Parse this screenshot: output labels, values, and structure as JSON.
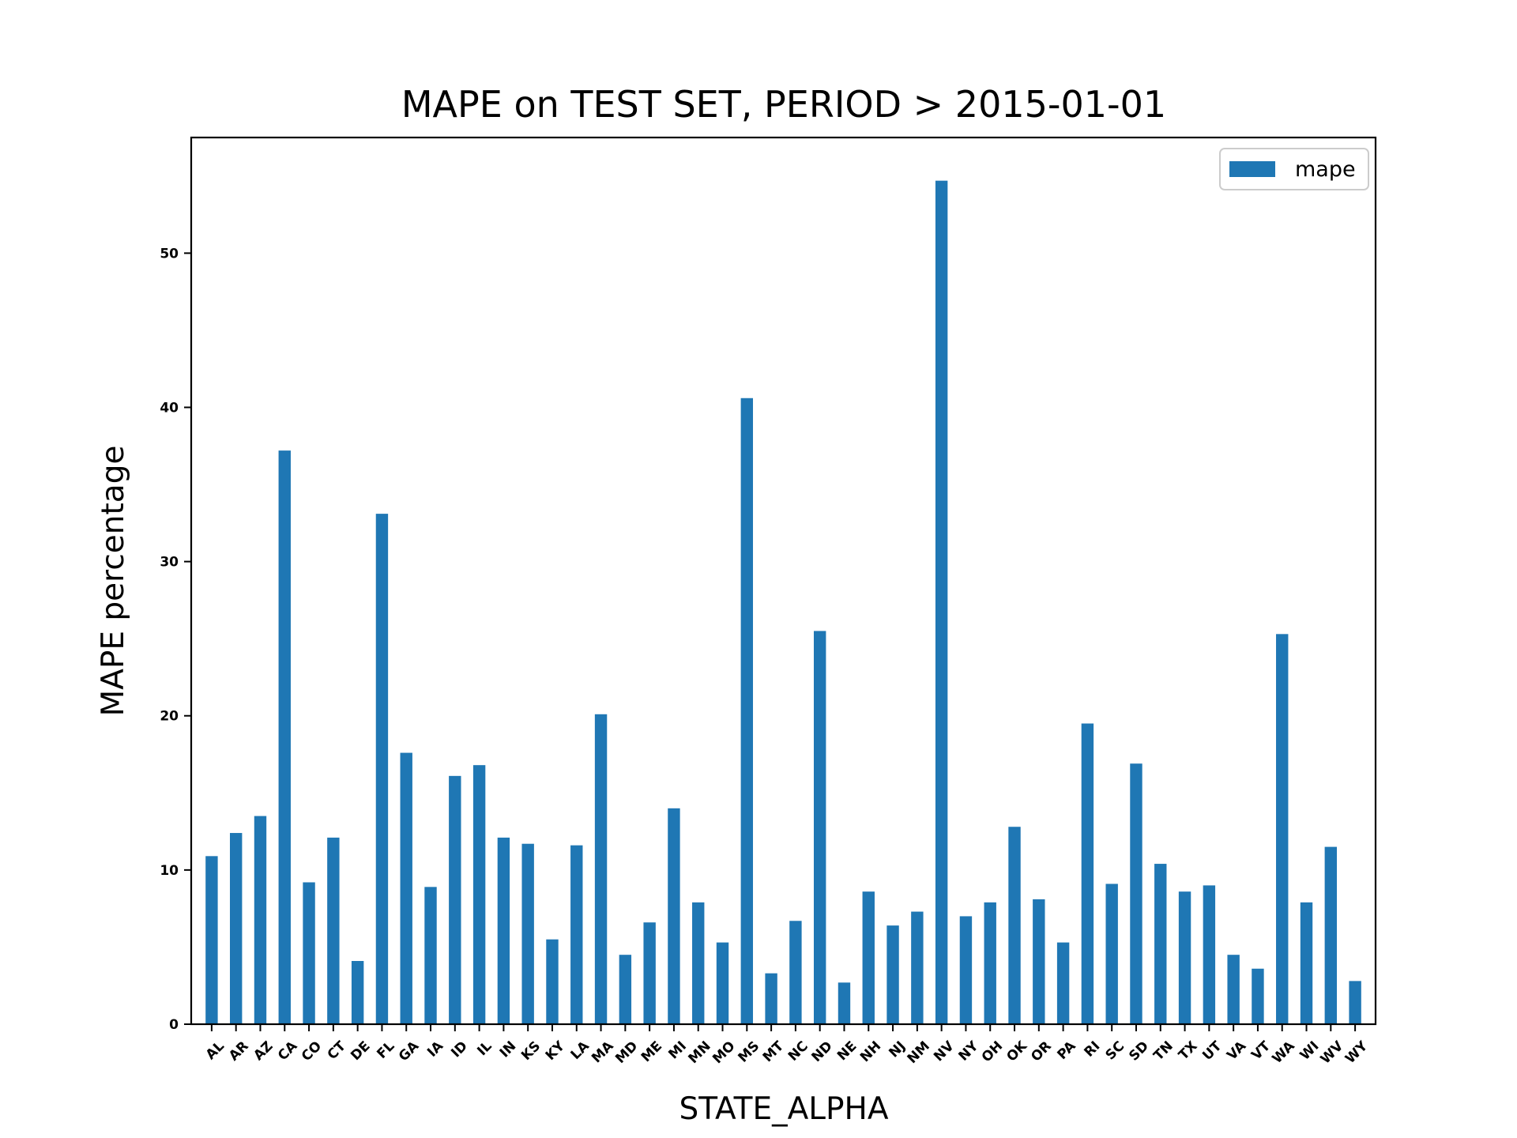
{
  "chart_data": {
    "type": "bar",
    "title": "MAPE on TEST SET, PERIOD > 2015-01-01",
    "xlabel": "STATE_ALPHA",
    "ylabel": "MAPE percentage",
    "ylim": [
      0,
      57.5
    ],
    "yticks": [
      "0",
      "10",
      "20",
      "30",
      "40",
      "50"
    ],
    "grid": false,
    "legend_position": "top-right",
    "bar_color": "#1f77b4",
    "categories": [
      "AL",
      "AR",
      "AZ",
      "CA",
      "CO",
      "CT",
      "DE",
      "FL",
      "GA",
      "IA",
      "ID",
      "IL",
      "IN",
      "KS",
      "KY",
      "LA",
      "MA",
      "MD",
      "ME",
      "MI",
      "MN",
      "MO",
      "MS",
      "MT",
      "NC",
      "ND",
      "NE",
      "NH",
      "NJ",
      "NM",
      "NV",
      "NY",
      "OH",
      "OK",
      "OR",
      "PA",
      "RI",
      "SC",
      "SD",
      "TN",
      "TX",
      "UT",
      "VA",
      "VT",
      "WA",
      "WI",
      "WV",
      "WY"
    ],
    "series": [
      {
        "name": "mape",
        "values": [
          10.9,
          12.4,
          13.5,
          37.2,
          9.2,
          12.1,
          4.1,
          33.1,
          17.6,
          8.9,
          16.1,
          16.8,
          12.1,
          11.7,
          5.5,
          11.6,
          20.1,
          4.5,
          6.6,
          14.0,
          7.9,
          5.3,
          40.6,
          3.3,
          6.7,
          25.5,
          2.7,
          8.6,
          6.4,
          7.3,
          54.7,
          7.0,
          7.9,
          12.8,
          8.1,
          5.3,
          19.5,
          9.1,
          16.9,
          10.4,
          8.6,
          9.0,
          4.5,
          3.6,
          25.3,
          7.9,
          11.5,
          2.8
        ]
      }
    ]
  }
}
